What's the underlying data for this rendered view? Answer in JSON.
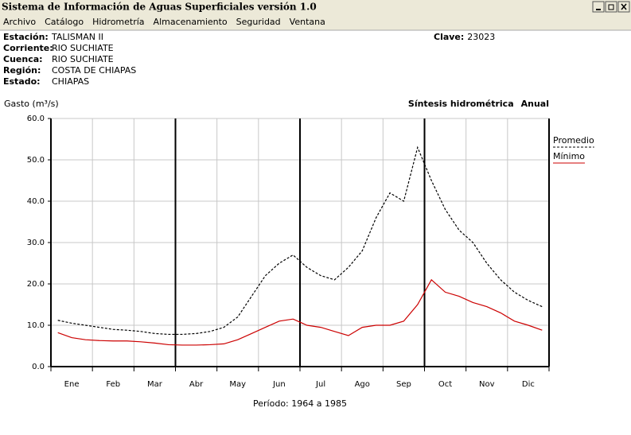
{
  "window": {
    "title": "Sistema de Información de Aguas Superficiales  versión 1.0"
  },
  "menu": [
    "Archivo",
    "Catálogo",
    "Hidrometría",
    "Almacenamiento",
    "Seguridad",
    "Ventana"
  ],
  "info": {
    "fields": [
      {
        "label": "Estación:",
        "value": "TALISMAN II"
      },
      {
        "label": "Corriente:",
        "value": "RIO SUCHIATE"
      },
      {
        "label": "Cuenca:",
        "value": "RIO SUCHIATE"
      },
      {
        "label": "Región:",
        "value": "COSTA DE CHIAPAS"
      },
      {
        "label": "Estado:",
        "value": "CHIAPAS"
      }
    ],
    "clave": {
      "label": "Clave:",
      "value": "23023"
    }
  },
  "chart_data": {
    "type": "line",
    "title": "Síntesis hidrométrica",
    "subtitle": "Anual",
    "y_label": "Gasto (m³/s)",
    "footer": "Período:  1964 a 1985",
    "categories": [
      null,
      "Ene",
      null,
      null,
      "Feb",
      null,
      null,
      "Mar",
      null,
      null,
      "Abr",
      null,
      null,
      "May",
      null,
      null,
      "Jun",
      null,
      null,
      "Jul",
      null,
      null,
      "Ago",
      null,
      null,
      "Sep",
      null,
      null,
      "Oct",
      null,
      null,
      "Nov",
      null,
      null,
      "Dic",
      null
    ],
    "series": [
      {
        "name": "Promedio",
        "color": "#000000",
        "dash": true,
        "values": [
          11.2,
          10.5,
          10.0,
          9.5,
          9.0,
          8.8,
          8.5,
          8.0,
          7.8,
          7.8,
          8.0,
          8.5,
          9.5,
          12,
          17,
          22,
          25,
          27,
          24,
          22,
          21,
          24,
          28,
          36,
          42,
          40,
          53,
          45,
          38,
          33,
          30,
          25,
          21,
          18,
          16,
          14.5
        ]
      },
      {
        "name": "Mínimo",
        "color": "#cc0000",
        "dash": false,
        "values": [
          8.2,
          7,
          6.5,
          6.3,
          6.2,
          6.2,
          6,
          5.7,
          5.3,
          5.2,
          5.2,
          5.3,
          5.5,
          6.5,
          8,
          9.5,
          11,
          11.5,
          10,
          9.5,
          8.5,
          7.5,
          9.5,
          10,
          10,
          11,
          15,
          21,
          18,
          17,
          15.5,
          14.5,
          13,
          11,
          10,
          8.8
        ]
      }
    ],
    "ylim": [
      0,
      60
    ],
    "yticks": [
      {
        "value": 0,
        "label": "0.0"
      },
      {
        "value": 10,
        "label": "10.0"
      },
      {
        "value": 20,
        "label": "20.0"
      },
      {
        "value": 30,
        "label": "30.0"
      },
      {
        "value": 40,
        "label": "40.0"
      },
      {
        "value": 50,
        "label": "50.0"
      },
      {
        "value": 60,
        "label": "60.0"
      }
    ],
    "grid": true
  }
}
